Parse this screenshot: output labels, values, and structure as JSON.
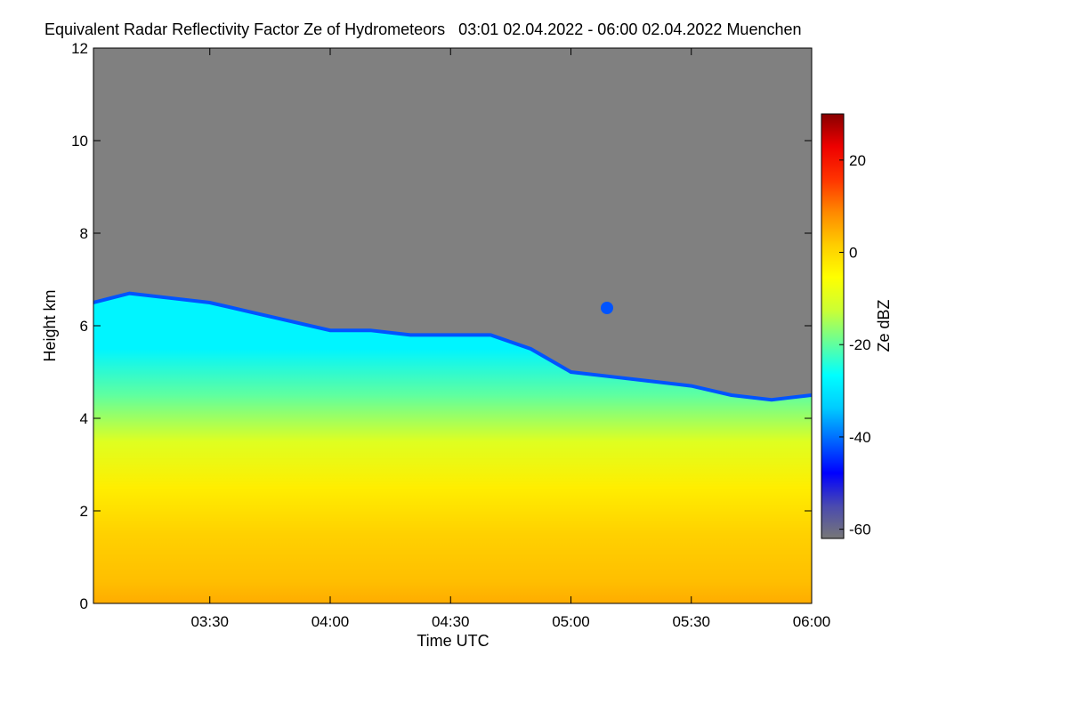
{
  "chart_data": {
    "type": "heatmap",
    "title": "Equivalent Radar Reflectivity Factor Ze of Hydrometeors   03:01 02.04.2022 - 06:00 02.04.2022 Muenchen",
    "xlabel": "Time UTC",
    "ylabel": "Height km",
    "x_ticks": [
      "03:30",
      "04:00",
      "04:30",
      "05:00",
      "05:30",
      "06:00"
    ],
    "x_tick_values_min": [
      210,
      240,
      270,
      300,
      330,
      360
    ],
    "xlim_min": [
      181,
      360
    ],
    "xlim_labels": [
      "03:01",
      "06:00"
    ],
    "y_ticks": [
      "0",
      "2",
      "4",
      "6",
      "8",
      "10",
      "12"
    ],
    "y_tick_values": [
      0,
      2,
      4,
      6,
      8,
      10,
      12
    ],
    "ylim": [
      0,
      12
    ],
    "no_data_color": "#808080",
    "colorbar": {
      "label": "Ze dBZ",
      "range": [
        -62,
        30
      ],
      "ticks": [
        "20",
        "0",
        "-20",
        "-40",
        "-60"
      ],
      "tick_values": [
        20,
        0,
        -20,
        -40,
        -60
      ],
      "colors": [
        "#777777",
        "#4a4ab0",
        "#0000ff",
        "#0066ff",
        "#00ccff",
        "#00ffff",
        "#66ff99",
        "#ccff33",
        "#ffff00",
        "#ffcc00",
        "#ff8800",
        "#ff3300",
        "#ee0000",
        "#880000"
      ]
    },
    "echo_top_km": [
      {
        "time": "03:01",
        "top": 6.5
      },
      {
        "time": "03:10",
        "top": 6.7
      },
      {
        "time": "03:20",
        "top": 6.6
      },
      {
        "time": "03:30",
        "top": 6.5
      },
      {
        "time": "03:40",
        "top": 6.3
      },
      {
        "time": "03:50",
        "top": 6.1
      },
      {
        "time": "04:00",
        "top": 5.9
      },
      {
        "time": "04:10",
        "top": 5.9
      },
      {
        "time": "04:20",
        "top": 5.8
      },
      {
        "time": "04:30",
        "top": 5.8
      },
      {
        "time": "04:40",
        "top": 5.8
      },
      {
        "time": "04:50",
        "top": 5.5
      },
      {
        "time": "05:00",
        "top": 5.0
      },
      {
        "time": "05:10",
        "top": 4.9
      },
      {
        "time": "05:20",
        "top": 4.8
      },
      {
        "time": "05:30",
        "top": 4.7
      },
      {
        "time": "05:40",
        "top": 4.5
      },
      {
        "time": "05:50",
        "top": 4.4
      },
      {
        "time": "06:00",
        "top": 4.5
      }
    ],
    "ze_profile_by_height": [
      {
        "height_km": 0.0,
        "ze_dbz": 5
      },
      {
        "height_km": 0.5,
        "ze_dbz": 3
      },
      {
        "height_km": 1.5,
        "ze_dbz": 1
      },
      {
        "height_km": 2.5,
        "ze_dbz": -3
      },
      {
        "height_km": 3.5,
        "ze_dbz": -10
      },
      {
        "height_km": 4.5,
        "ze_dbz": -20
      },
      {
        "height_km": 5.5,
        "ze_dbz": -28
      }
    ],
    "echo_top_ze_dbz": -42
  }
}
